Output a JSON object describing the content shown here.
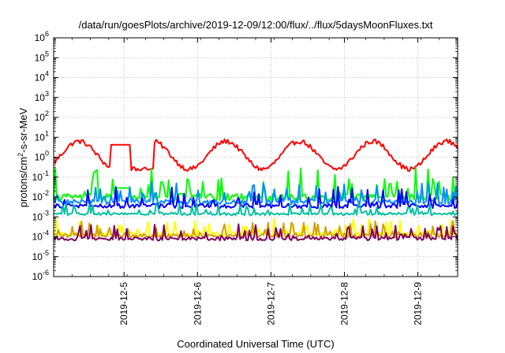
{
  "chart_data": {
    "type": "line",
    "title": "/data/run/goesPlots/archive/2019-12-09/12:00/flux/../flux/5daysMoonFluxes.txt",
    "xlabel": "Coordinated Universal Time (UTC)",
    "ylabel_main": "protons/cm",
    "ylabel_sup": "2",
    "ylabel_rest": "-s-sr-MeV",
    "y_scale": "log",
    "ylim_exp": [
      -6,
      6
    ],
    "y_ticks": [
      {
        "base": "10",
        "exp": "-6"
      },
      {
        "base": "10",
        "exp": "-5"
      },
      {
        "base": "10",
        "exp": "-4"
      },
      {
        "base": "10",
        "exp": "-3"
      },
      {
        "base": "10",
        "exp": "-2"
      },
      {
        "base": "10",
        "exp": "-1"
      },
      {
        "base": "10",
        "exp": "0"
      },
      {
        "base": "10",
        "exp": "1"
      },
      {
        "base": "10",
        "exp": "2"
      },
      {
        "base": "10",
        "exp": "3"
      },
      {
        "base": "10",
        "exp": "4"
      },
      {
        "base": "10",
        "exp": "5"
      },
      {
        "base": "10",
        "exp": "6"
      }
    ],
    "xlim": [
      "2019-12-04 01:00",
      "2019-12-09 13:00"
    ],
    "x_ticks": [
      "2019-12-5",
      "2019-12-6",
      "2019-12-7",
      "2019-12-8",
      "2019-12-9"
    ],
    "grid": true,
    "legend": "none",
    "series": [
      {
        "color": "#ff0000",
        "pattern": "red-mooncycle",
        "base_exp": 0.1,
        "amp_exp": 0.7,
        "noise_exp": 0.12
      },
      {
        "color": "#00ff00",
        "pattern": "spiky",
        "base_exp": -2.0,
        "amp_exp": 0.0,
        "noise_exp": 0.7
      },
      {
        "color": "#0090ff",
        "pattern": "spiky",
        "base_exp": -2.25,
        "amp_exp": 0.0,
        "noise_exp": 0.45
      },
      {
        "color": "#0000ff",
        "pattern": "spiky",
        "base_exp": -2.45,
        "amp_exp": 0.0,
        "noise_exp": 0.45
      },
      {
        "color": "#00c0a0",
        "pattern": "spiky",
        "base_exp": -2.85,
        "amp_exp": 0.0,
        "noise_exp": 0.25
      },
      {
        "color": "#ffff00",
        "pattern": "spiky",
        "base_exp": -3.85,
        "amp_exp": 0.0,
        "noise_exp": 0.35
      },
      {
        "color": "#d4a000",
        "pattern": "spiky",
        "base_exp": -3.95,
        "amp_exp": 0.0,
        "noise_exp": 0.35
      },
      {
        "color": "#800060",
        "pattern": "spiky",
        "base_exp": -4.1,
        "amp_exp": 0.0,
        "noise_exp": 0.35
      }
    ]
  }
}
